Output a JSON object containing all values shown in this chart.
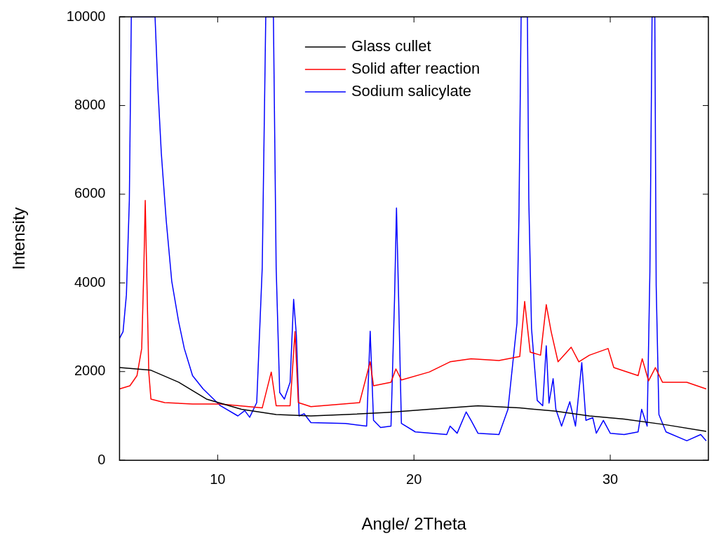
{
  "chart_data": {
    "type": "line",
    "xlabel": "Angle/ 2Theta",
    "ylabel": "Intensity",
    "xlim": [
      5,
      35
    ],
    "ylim": [
      0,
      10000
    ],
    "xticks": [
      10,
      20,
      30
    ],
    "yticks": [
      0,
      2000,
      4000,
      6000,
      8000,
      10000
    ],
    "legend": "top",
    "marker": "none",
    "series": [
      {
        "name": "Glass cullet",
        "color": "#000000",
        "x": [
          5,
          6.6,
          8.01,
          9.43,
          11.21,
          12.98,
          14.75,
          16.52,
          18.65,
          20.78,
          23.26,
          25.39,
          27.16,
          28.94,
          30.71,
          32.84,
          34.89
        ],
        "values": [
          2090,
          2030,
          1760,
          1380,
          1150,
          1030,
          1000,
          1030,
          1080,
          1150,
          1230,
          1180,
          1110,
          1000,
          930,
          800,
          650
        ]
      },
      {
        "name": "Solid after reaction",
        "color": "#ff0000",
        "x": [
          5,
          5.53,
          5.89,
          6.13,
          6.24,
          6.31,
          6.38,
          6.49,
          6.6,
          7.3,
          8.72,
          10.14,
          12.27,
          12.73,
          12.98,
          13.69,
          13.94,
          14.11,
          14.75,
          17.23,
          17.77,
          17.94,
          18.83,
          19.08,
          19.36,
          20.78,
          21.84,
          22.91,
          24.33,
          25.39,
          25.64,
          25.92,
          26.45,
          26.74,
          26.99,
          27.34,
          28.01,
          28.4,
          28.94,
          29.89,
          30.18,
          31.42,
          31.63,
          31.95,
          32.3,
          32.66,
          33.9,
          34.89
        ],
        "values": [
          1610,
          1680,
          1910,
          2520,
          4340,
          5860,
          4340,
          1990,
          1380,
          1300,
          1270,
          1270,
          1180,
          1990,
          1230,
          1230,
          2900,
          1300,
          1210,
          1300,
          2220,
          1680,
          1760,
          2060,
          1810,
          1990,
          2220,
          2290,
          2250,
          2340,
          3580,
          2440,
          2370,
          3510,
          2900,
          2220,
          2550,
          2220,
          2370,
          2520,
          2090,
          1910,
          2290,
          1790,
          2090,
          1760,
          1760,
          1610
        ]
      },
      {
        "name": "Sodium salicylate",
        "color": "#0000ff",
        "x": [
          5,
          5.18,
          5.35,
          5.5,
          5.6,
          6.81,
          6.95,
          7.13,
          7.38,
          7.66,
          8.01,
          8.3,
          8.72,
          9.26,
          10.14,
          11.03,
          11.38,
          11.63,
          11.99,
          12.27,
          12.45,
          12.84,
          12.98,
          13.16,
          13.4,
          13.69,
          13.87,
          14.01,
          14.15,
          14.4,
          14.75,
          16.52,
          17.59,
          17.77,
          17.94,
          18.3,
          18.83,
          19.01,
          19.11,
          19.22,
          19.36,
          20.07,
          21.67,
          21.84,
          22.2,
          22.66,
          22.91,
          23.26,
          24.33,
          24.79,
          25.25,
          25.35,
          25.46,
          25.78,
          25.85,
          25.99,
          26.28,
          26.56,
          26.74,
          26.88,
          27.09,
          27.23,
          27.52,
          27.94,
          28.23,
          28.55,
          28.76,
          29.11,
          29.29,
          29.65,
          30.0,
          30.71,
          31.42,
          31.6,
          31.88,
          32.02,
          32.13,
          32.27,
          32.34,
          32.48,
          32.84,
          33.9,
          34.61,
          34.89
        ],
        "values": [
          2750,
          2900,
          3730,
          5860,
          10000,
          10000,
          8440,
          6920,
          5400,
          4040,
          3130,
          2520,
          1910,
          1610,
          1230,
          1000,
          1120,
          970,
          1300,
          4340,
          10000,
          10000,
          4340,
          1530,
          1380,
          1760,
          3630,
          2820,
          1000,
          1050,
          850,
          830,
          770,
          2910,
          900,
          740,
          770,
          3630,
          5690,
          3630,
          830,
          640,
          580,
          770,
          610,
          1090,
          900,
          610,
          580,
          1150,
          3100,
          5570,
          10000,
          10000,
          5890,
          2970,
          1350,
          1230,
          2580,
          1290,
          1840,
          1150,
          770,
          1320,
          770,
          2200,
          900,
          960,
          610,
          900,
          610,
          580,
          640,
          1150,
          770,
          4260,
          10000,
          10000,
          3950,
          1030,
          640,
          440,
          580,
          440
        ]
      }
    ]
  }
}
